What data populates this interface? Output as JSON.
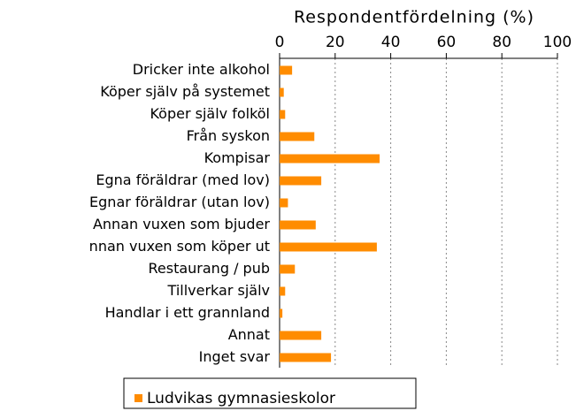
{
  "chart_data": {
    "type": "bar",
    "orientation": "horizontal",
    "x_label": "Respondentfördelning (%)",
    "categories": [
      "Dricker inte alkohol",
      "Köper själv på systemet",
      "Köper själv folköl",
      "Från syskon",
      "Kompisar",
      "Egna föräldrar (med lov)",
      "Egnar föräldrar (utan lov)",
      "Annan vuxen som bjuder",
      "nnan vuxen som köper ut",
      "Restaurang / pub",
      "Tillverkar själv",
      "Handlar i ett grannland",
      "Annat",
      "Inget svar"
    ],
    "series": [
      {
        "name": "Ludvikas gymnasieskolor",
        "color": "#ff8c00",
        "values": [
          4.5,
          1.5,
          2,
          12.5,
          36,
          15,
          3,
          13,
          35,
          5.5,
          2,
          1,
          15,
          18.5
        ]
      }
    ],
    "xlim": [
      0,
      100
    ],
    "xticks": [
      0,
      20,
      40,
      60,
      80,
      100
    ],
    "grid": true,
    "legend": "bottom"
  }
}
